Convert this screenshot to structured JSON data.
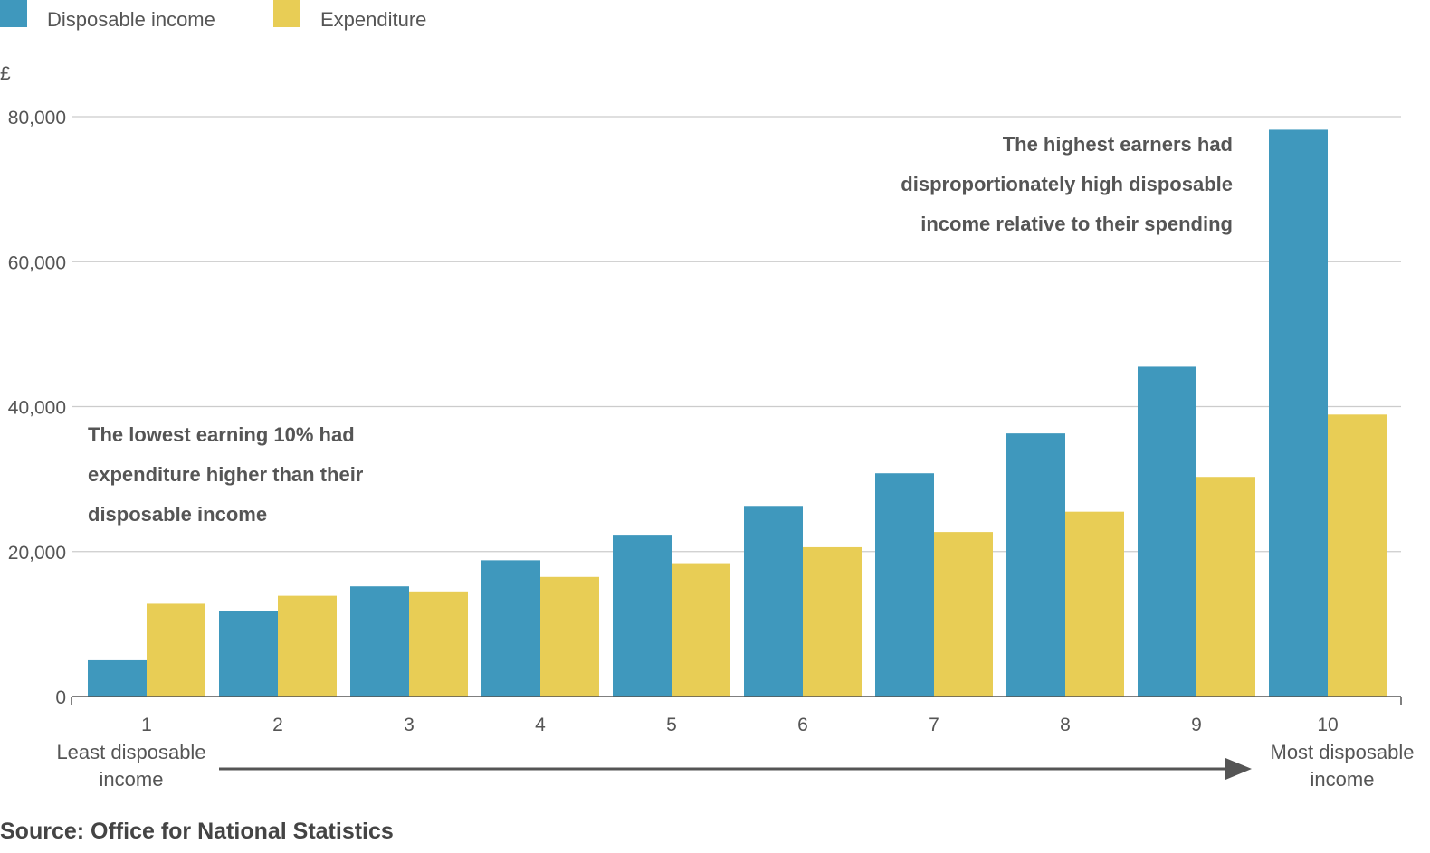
{
  "legend": {
    "income_label": "Disposable income",
    "expenditure_label": "Expenditure"
  },
  "unit_label": "£",
  "colors": {
    "income": "#3f98bd",
    "expenditure": "#e8cd55",
    "grid": "#cccccc",
    "axis": "#555555",
    "text": "#555555"
  },
  "annotations": {
    "low": [
      "The lowest earning 10% had",
      "expenditure higher than their",
      "disposable income"
    ],
    "high": [
      "The highest earners had",
      "disproportionately high disposable",
      "income relative to their spending"
    ]
  },
  "x_end_labels": {
    "left": [
      "Least disposable",
      "income"
    ],
    "right": [
      "Most disposable",
      "income"
    ]
  },
  "source": "Source: Office for National Statistics",
  "chart_data": {
    "type": "bar",
    "title": "",
    "xlabel": "",
    "ylabel": "£",
    "categories": [
      "1",
      "2",
      "3",
      "4",
      "5",
      "6",
      "7",
      "8",
      "9",
      "10"
    ],
    "series": [
      {
        "name": "Disposable income",
        "values": [
          5000,
          11800,
          15200,
          18800,
          22200,
          26300,
          30800,
          36300,
          45500,
          78200
        ]
      },
      {
        "name": "Expenditure",
        "values": [
          12800,
          13900,
          14500,
          16500,
          18400,
          20600,
          22700,
          25500,
          30300,
          38900
        ]
      }
    ],
    "ylim": [
      0,
      80000
    ],
    "yticks": [
      "0",
      "20,000",
      "40,000",
      "60,000",
      "80,000"
    ],
    "ytick_values": [
      0,
      20000,
      40000,
      60000,
      80000
    ],
    "grid": true,
    "legend_position": "top-left"
  }
}
